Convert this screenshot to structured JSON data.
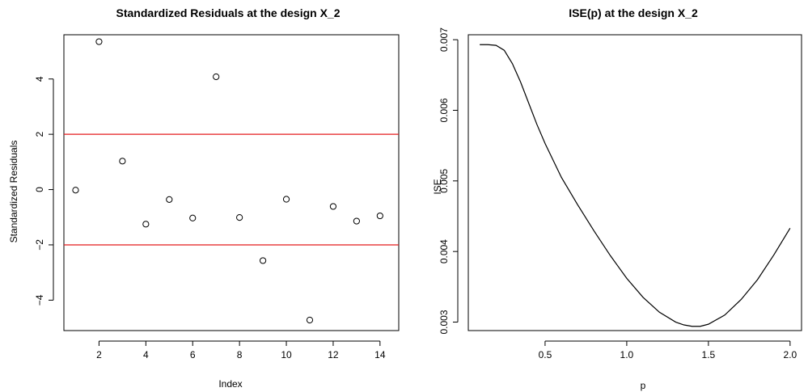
{
  "chart_data": [
    {
      "type": "scatter",
      "title": "Standardized Residuals at the design X_2",
      "xlabel": "Index",
      "ylabel": "Standardized Residuals",
      "xlim": [
        0.5,
        14.8
      ],
      "ylim": [
        -5.1,
        5.6
      ],
      "xticks": [
        2,
        4,
        6,
        8,
        10,
        12,
        14
      ],
      "yticks": [
        -4,
        -2,
        0,
        2,
        4
      ],
      "x": [
        1,
        2,
        3,
        4,
        5,
        6,
        7,
        8,
        9,
        10,
        11,
        12,
        13,
        14
      ],
      "y": [
        -0.02,
        5.35,
        1.03,
        -1.25,
        -0.36,
        -1.03,
        4.08,
        -1.01,
        -2.57,
        -0.35,
        -4.72,
        -0.61,
        -1.14,
        -0.95
      ],
      "reference_lines": [
        2,
        -2
      ],
      "reference_color": "#e41a1c",
      "point_style": "open-circle",
      "grid": false,
      "legend": "none"
    },
    {
      "type": "line",
      "title": "ISE(p) at the design X_2",
      "xlabel": "p",
      "ylabel": "ISE",
      "xlim": [
        0.03,
        2.07
      ],
      "ylim": [
        0.00288,
        0.00707
      ],
      "xticks": [
        0.5,
        1.0,
        1.5,
        2.0
      ],
      "yticks": [
        0.003,
        0.004,
        0.005,
        0.006,
        0.007
      ],
      "x": [
        0.1,
        0.15,
        0.2,
        0.25,
        0.3,
        0.35,
        0.4,
        0.45,
        0.5,
        0.6,
        0.7,
        0.8,
        0.9,
        1.0,
        1.1,
        1.2,
        1.3,
        1.35,
        1.4,
        1.45,
        1.5,
        1.6,
        1.7,
        1.8,
        1.9,
        2.0
      ],
      "y": [
        0.00693,
        0.00693,
        0.00692,
        0.00685,
        0.00666,
        0.0064,
        0.0061,
        0.0058,
        0.00553,
        0.00505,
        0.00466,
        0.00429,
        0.00394,
        0.00362,
        0.00335,
        0.00314,
        0.003,
        0.00296,
        0.00294,
        0.00294,
        0.00297,
        0.0031,
        0.00332,
        0.0036,
        0.00395,
        0.00433
      ],
      "line_color": "#000000",
      "grid": false,
      "legend": "none"
    }
  ]
}
